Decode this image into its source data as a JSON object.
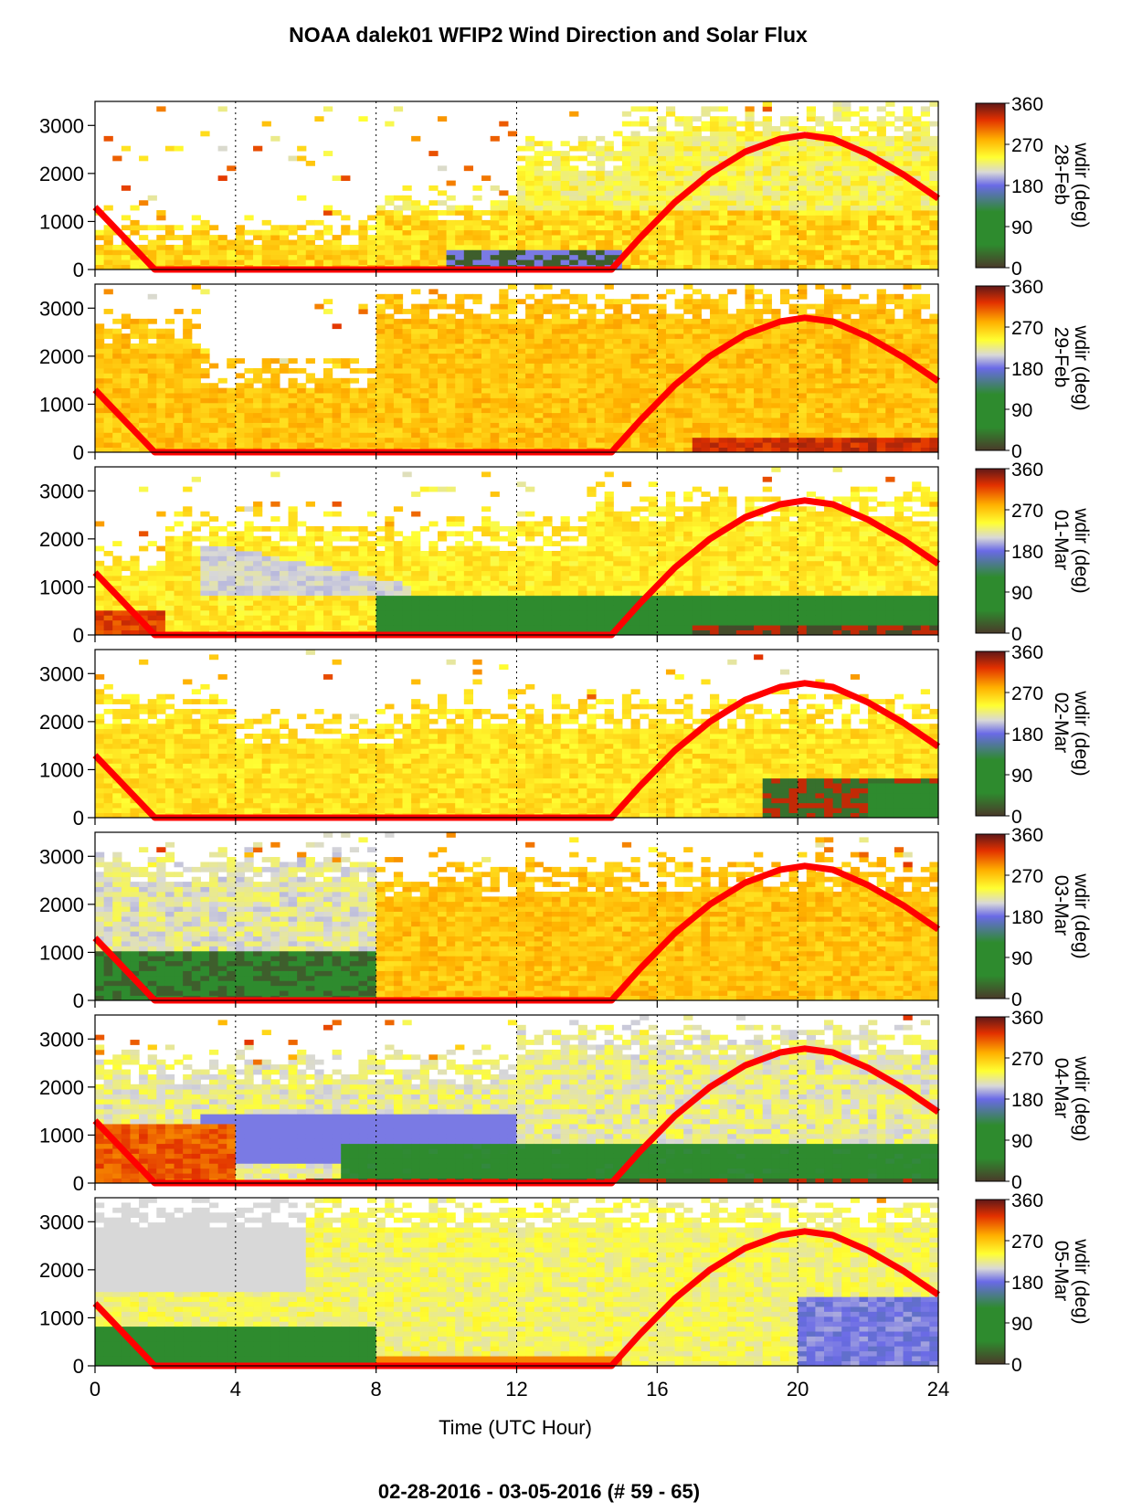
{
  "title": "NOAA dalek01 WFIP2 Wind Direction and Solar Flux",
  "footer": "02-28-2016 - 03-05-2016    (# 59 - 65)",
  "xlabel": "Time (UTC Hour)",
  "colorbar": {
    "label": "wdir (deg)",
    "ticks": [
      "360",
      "270",
      "180",
      "90",
      "0"
    ],
    "colors": [
      "#4a3a2a",
      "#2e8b2e",
      "#6a6ae6",
      "#d8d8d8",
      "#ffff33",
      "#ffb000",
      "#e23000",
      "#601818"
    ]
  },
  "chart_data": {
    "type": "heatmap",
    "x_ticks": [
      "0",
      "4",
      "8",
      "12",
      "16",
      "20",
      "24"
    ],
    "y_ticks": [
      "0",
      "1000",
      "2000",
      "3000"
    ],
    "xlim": [
      0,
      24
    ],
    "ylim": [
      0,
      3500
    ],
    "xlabel": "Time (UTC Hour)",
    "ylabel": "",
    "grid": "vertical dotted at every 4 hours",
    "value_label": "wdir (deg)",
    "value_range": [
      0,
      360
    ],
    "overlay": {
      "name": "",
      "color": "#ff0000",
      "x": [
        0,
        1.7,
        14.7,
        15.5,
        16.5,
        17.5,
        18.5,
        19.5,
        20.2,
        21,
        22,
        23,
        24
      ],
      "y": [
        1300,
        0,
        0,
        650,
        1400,
        2000,
        2450,
        2720,
        2800,
        2720,
        2400,
        1980,
        1480
      ]
    },
    "panels": [
      {
        "label": "28-Feb",
        "summary": "orange-yellow westerly flow, scattered echoes above 2000 m, bluish/dark patch near 10-15 h low levels"
      },
      {
        "label": "29-Feb",
        "summary": "orange southwesterly flow through depth, dense coverage to 3000 m after 8 h"
      },
      {
        "label": "01-Mar",
        "summary": "gray-blue band descending 4-8 h, green easterly low layer after 8 h, dark brown near surface at 18-23 h"
      },
      {
        "label": "02-Mar",
        "summary": "orange-yellow flow, dark red/brown and green low levels after 20 h"
      },
      {
        "label": "03-Mar",
        "summary": "green and dark low layer 0-8 h, orange flow after 8 h"
      },
      {
        "label": "04-Mar",
        "summary": "blue-gray band 4-12 h, green low layer 8-24 h, dark near-surface streaks"
      },
      {
        "label": "05-Mar",
        "summary": "green low layer 0-8 h, light gray/yellow upper levels, blue low levels after 20 h"
      }
    ]
  }
}
